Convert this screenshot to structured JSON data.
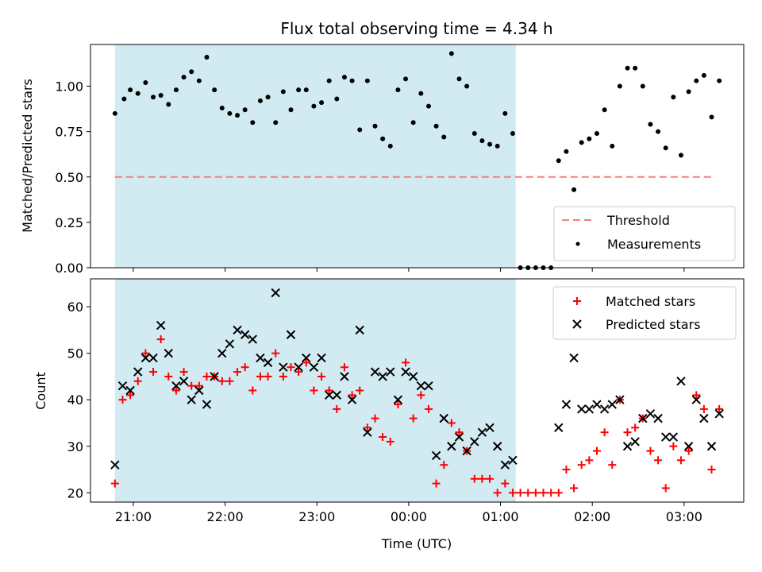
{
  "chart_data": [
    {
      "type": "scatter",
      "title": "Flux total observing time = 4.34 h",
      "xlabel": "",
      "ylabel": "Matched/Predicted stars",
      "ylim": [
        0,
        1.23
      ],
      "yticks": [
        0.0,
        0.25,
        0.5,
        0.75,
        1.0
      ],
      "ytick_labels": [
        "0.00",
        "0.25",
        "0.50",
        "0.75",
        "1.00"
      ],
      "shaded_span": [
        "20:48",
        "01:10"
      ],
      "shade_color": "#add8e6",
      "threshold": {
        "name": "Threshold",
        "value": 0.5,
        "x_range": [
          "20:48",
          "03:18"
        ],
        "color": "#f08080"
      },
      "legend": {
        "position": "lower right",
        "entries": [
          "Threshold",
          "Measurements"
        ]
      },
      "series": [
        {
          "name": "Measurements",
          "color": "#000000",
          "points": [
            [
              "20:48",
              0.85
            ],
            [
              "20:54",
              0.93
            ],
            [
              "20:58",
              0.98
            ],
            [
              "21:03",
              0.96
            ],
            [
              "21:08",
              1.02
            ],
            [
              "21:13",
              0.94
            ],
            [
              "21:18",
              0.95
            ],
            [
              "21:23",
              0.9
            ],
            [
              "21:28",
              0.98
            ],
            [
              "21:33",
              1.05
            ],
            [
              "21:38",
              1.08
            ],
            [
              "21:43",
              1.03
            ],
            [
              "21:48",
              1.16
            ],
            [
              "21:53",
              0.98
            ],
            [
              "21:58",
              0.88
            ],
            [
              "22:03",
              0.85
            ],
            [
              "22:08",
              0.84
            ],
            [
              "22:13",
              0.87
            ],
            [
              "22:18",
              0.8
            ],
            [
              "22:23",
              0.92
            ],
            [
              "22:28",
              0.94
            ],
            [
              "22:33",
              0.8
            ],
            [
              "22:38",
              0.97
            ],
            [
              "22:43",
              0.87
            ],
            [
              "22:48",
              0.98
            ],
            [
              "22:53",
              0.98
            ],
            [
              "22:58",
              0.89
            ],
            [
              "23:03",
              0.91
            ],
            [
              "23:08",
              1.03
            ],
            [
              "23:13",
              0.93
            ],
            [
              "23:18",
              1.05
            ],
            [
              "23:23",
              1.03
            ],
            [
              "23:28",
              0.76
            ],
            [
              "23:33",
              1.03
            ],
            [
              "23:38",
              0.78
            ],
            [
              "23:43",
              0.71
            ],
            [
              "23:48",
              0.67
            ],
            [
              "23:53",
              0.98
            ],
            [
              "23:58",
              1.04
            ],
            [
              "00:03",
              0.8
            ],
            [
              "00:08",
              0.96
            ],
            [
              "00:13",
              0.89
            ],
            [
              "00:18",
              0.78
            ],
            [
              "00:23",
              0.72
            ],
            [
              "00:28",
              1.18
            ],
            [
              "00:33",
              1.04
            ],
            [
              "00:38",
              1.0
            ],
            [
              "00:43",
              0.74
            ],
            [
              "00:48",
              0.7
            ],
            [
              "00:53",
              0.68
            ],
            [
              "00:58",
              0.67
            ],
            [
              "01:03",
              0.85
            ],
            [
              "01:08",
              0.74
            ],
            [
              "01:13",
              0.0
            ],
            [
              "01:18",
              0.0
            ],
            [
              "01:23",
              0.0
            ],
            [
              "01:28",
              0.0
            ],
            [
              "01:33",
              0.0
            ],
            [
              "01:38",
              0.59
            ],
            [
              "01:43",
              0.64
            ],
            [
              "01:48",
              0.43
            ],
            [
              "01:53",
              0.69
            ],
            [
              "01:58",
              0.71
            ],
            [
              "02:03",
              0.74
            ],
            [
              "02:08",
              0.87
            ],
            [
              "02:13",
              0.67
            ],
            [
              "02:18",
              1.0
            ],
            [
              "02:23",
              1.1
            ],
            [
              "02:28",
              1.1
            ],
            [
              "02:33",
              1.0
            ],
            [
              "02:38",
              0.79
            ],
            [
              "02:43",
              0.75
            ],
            [
              "02:48",
              0.66
            ],
            [
              "02:53",
              0.94
            ],
            [
              "02:58",
              0.62
            ],
            [
              "03:03",
              0.97
            ],
            [
              "03:08",
              1.03
            ],
            [
              "03:13",
              1.06
            ],
            [
              "03:18",
              0.83
            ],
            [
              "03:23",
              1.03
            ]
          ]
        }
      ]
    },
    {
      "type": "scatter",
      "title": "",
      "xlabel": "Time (UTC)",
      "ylabel": "Count",
      "ylim": [
        18,
        66
      ],
      "yticks": [
        20,
        30,
        40,
        50,
        60
      ],
      "xticks": [
        "21:00",
        "22:00",
        "23:00",
        "00:00",
        "01:00",
        "02:00",
        "03:00"
      ],
      "shaded_span": [
        "20:48",
        "01:10"
      ],
      "shade_color": "#add8e6",
      "legend": {
        "position": "upper right",
        "entries": [
          "Matched stars",
          "Predicted stars"
        ]
      },
      "series": [
        {
          "name": "Matched stars",
          "marker": "plus",
          "color": "#ff0000",
          "points": [
            [
              "20:48",
              22
            ],
            [
              "20:53",
              40
            ],
            [
              "20:58",
              41
            ],
            [
              "21:03",
              44
            ],
            [
              "21:08",
              50
            ],
            [
              "21:13",
              46
            ],
            [
              "21:18",
              53
            ],
            [
              "21:23",
              45
            ],
            [
              "21:28",
              42
            ],
            [
              "21:33",
              46
            ],
            [
              "21:38",
              43
            ],
            [
              "21:43",
              43
            ],
            [
              "21:48",
              45
            ],
            [
              "21:53",
              45
            ],
            [
              "21:58",
              44
            ],
            [
              "22:03",
              44
            ],
            [
              "22:08",
              46
            ],
            [
              "22:13",
              47
            ],
            [
              "22:18",
              42
            ],
            [
              "22:23",
              45
            ],
            [
              "22:28",
              45
            ],
            [
              "22:33",
              50
            ],
            [
              "22:38",
              45
            ],
            [
              "22:43",
              47
            ],
            [
              "22:48",
              46
            ],
            [
              "22:53",
              48
            ],
            [
              "22:58",
              42
            ],
            [
              "23:03",
              45
            ],
            [
              "23:08",
              42
            ],
            [
              "23:13",
              38
            ],
            [
              "23:18",
              47
            ],
            [
              "23:23",
              41
            ],
            [
              "23:28",
              42
            ],
            [
              "23:33",
              34
            ],
            [
              "23:38",
              36
            ],
            [
              "23:43",
              32
            ],
            [
              "23:48",
              31
            ],
            [
              "23:53",
              39
            ],
            [
              "23:58",
              48
            ],
            [
              "00:03",
              36
            ],
            [
              "00:08",
              41
            ],
            [
              "00:13",
              38
            ],
            [
              "00:18",
              22
            ],
            [
              "00:23",
              26
            ],
            [
              "00:28",
              35
            ],
            [
              "00:33",
              33
            ],
            [
              "00:38",
              29
            ],
            [
              "00:43",
              23
            ],
            [
              "00:48",
              23
            ],
            [
              "00:53",
              23
            ],
            [
              "00:58",
              20
            ],
            [
              "01:03",
              22
            ],
            [
              "01:08",
              20
            ],
            [
              "01:13",
              20
            ],
            [
              "01:18",
              20
            ],
            [
              "01:23",
              20
            ],
            [
              "01:28",
              20
            ],
            [
              "01:33",
              20
            ],
            [
              "01:38",
              20
            ],
            [
              "01:43",
              25
            ],
            [
              "01:48",
              21
            ],
            [
              "01:53",
              26
            ],
            [
              "01:58",
              27
            ],
            [
              "02:03",
              29
            ],
            [
              "02:08",
              33
            ],
            [
              "02:13",
              26
            ],
            [
              "02:18",
              40
            ],
            [
              "02:23",
              33
            ],
            [
              "02:28",
              34
            ],
            [
              "02:33",
              36
            ],
            [
              "02:38",
              29
            ],
            [
              "02:43",
              27
            ],
            [
              "02:48",
              21
            ],
            [
              "02:53",
              30
            ],
            [
              "02:58",
              27
            ],
            [
              "03:03",
              29
            ],
            [
              "03:08",
              41
            ],
            [
              "03:13",
              38
            ],
            [
              "03:18",
              25
            ],
            [
              "03:23",
              38
            ]
          ]
        },
        {
          "name": "Predicted stars",
          "marker": "x",
          "color": "#000000",
          "points": [
            [
              "20:48",
              26
            ],
            [
              "20:53",
              43
            ],
            [
              "20:58",
              42
            ],
            [
              "21:03",
              46
            ],
            [
              "21:08",
              49
            ],
            [
              "21:13",
              49
            ],
            [
              "21:18",
              56
            ],
            [
              "21:23",
              50
            ],
            [
              "21:28",
              43
            ],
            [
              "21:33",
              44
            ],
            [
              "21:38",
              40
            ],
            [
              "21:43",
              42
            ],
            [
              "21:48",
              39
            ],
            [
              "21:53",
              45
            ],
            [
              "21:58",
              50
            ],
            [
              "22:03",
              52
            ],
            [
              "22:08",
              55
            ],
            [
              "22:13",
              54
            ],
            [
              "22:18",
              53
            ],
            [
              "22:23",
              49
            ],
            [
              "22:28",
              48
            ],
            [
              "22:33",
              63
            ],
            [
              "22:38",
              47
            ],
            [
              "22:43",
              54
            ],
            [
              "22:48",
              47
            ],
            [
              "22:53",
              49
            ],
            [
              "22:58",
              47
            ],
            [
              "23:03",
              49
            ],
            [
              "23:08",
              41
            ],
            [
              "23:13",
              41
            ],
            [
              "23:18",
              45
            ],
            [
              "23:23",
              40
            ],
            [
              "23:28",
              55
            ],
            [
              "23:33",
              33
            ],
            [
              "23:38",
              46
            ],
            [
              "23:43",
              45
            ],
            [
              "23:48",
              46
            ],
            [
              "23:53",
              40
            ],
            [
              "23:58",
              46
            ],
            [
              "00:03",
              45
            ],
            [
              "00:08",
              43
            ],
            [
              "00:13",
              43
            ],
            [
              "00:18",
              28
            ],
            [
              "00:23",
              36
            ],
            [
              "00:28",
              30
            ],
            [
              "00:33",
              32
            ],
            [
              "00:38",
              29
            ],
            [
              "00:43",
              31
            ],
            [
              "00:48",
              33
            ],
            [
              "00:53",
              34
            ],
            [
              "00:58",
              30
            ],
            [
              "01:03",
              26
            ],
            [
              "01:08",
              27
            ],
            [
              "01:38",
              34
            ],
            [
              "01:43",
              39
            ],
            [
              "01:48",
              49
            ],
            [
              "01:53",
              38
            ],
            [
              "01:58",
              38
            ],
            [
              "02:03",
              39
            ],
            [
              "02:08",
              38
            ],
            [
              "02:13",
              39
            ],
            [
              "02:18",
              40
            ],
            [
              "02:23",
              30
            ],
            [
              "02:28",
              31
            ],
            [
              "02:33",
              36
            ],
            [
              "02:38",
              37
            ],
            [
              "02:43",
              36
            ],
            [
              "02:48",
              32
            ],
            [
              "02:53",
              32
            ],
            [
              "02:58",
              44
            ],
            [
              "03:03",
              30
            ],
            [
              "03:08",
              40
            ],
            [
              "03:13",
              36
            ],
            [
              "03:18",
              30
            ],
            [
              "03:23",
              37
            ]
          ]
        }
      ]
    }
  ]
}
